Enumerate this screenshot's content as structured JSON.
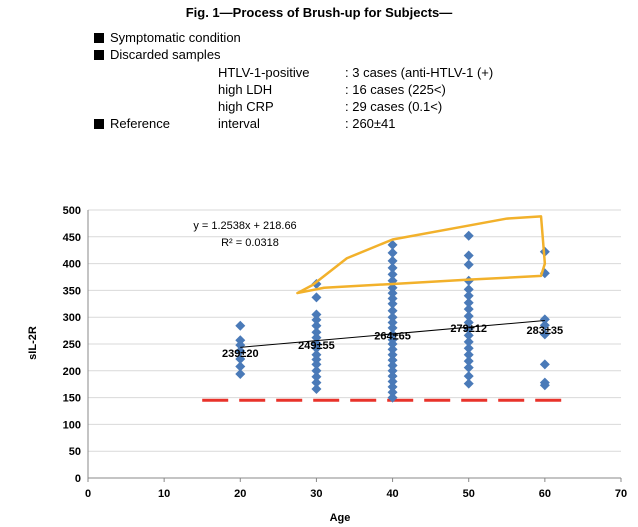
{
  "header": {
    "title": "Fig. 1—Process of Brush-up for Subjects—",
    "bullets": [
      "Symptomatic condition",
      "Discarded samples",
      "Reference"
    ],
    "reference_label": "interval",
    "reference_value": ": 260±41",
    "discarded": [
      {
        "name": "HTLV-1-positive",
        "value": ": 3 cases (anti-HTLV-1 (+)"
      },
      {
        "name": "high LDH",
        "value": ": 16 cases (225<)"
      },
      {
        "name": "high CRP",
        "value": ": 29 cases (0.1<)"
      }
    ]
  },
  "colors": {
    "points": "#4a7ab8",
    "trend": "#000000",
    "highlight": "#f2b12b",
    "threshold": "#e8322a"
  },
  "chart_data": {
    "type": "scatter",
    "xlabel": "Age",
    "ylabel": "sIL-2R",
    "xlim": [
      0,
      70
    ],
    "ylim": [
      0,
      500
    ],
    "xticks": [
      0,
      10,
      20,
      30,
      40,
      50,
      60,
      70
    ],
    "yticks": [
      0,
      50,
      100,
      150,
      200,
      250,
      300,
      350,
      400,
      450,
      500
    ],
    "grid": "horizontal",
    "trendline": {
      "slope": 1.2538,
      "intercept": 218.66,
      "x_range": [
        20,
        60
      ],
      "equation": "y = 1.2538x + 218.66",
      "r2": "R² = 0.0318"
    },
    "threshold_line": {
      "y": 145,
      "x_range": [
        15,
        63
      ]
    },
    "highlight_polygon": [
      [
        27.5,
        345
      ],
      [
        31,
        355
      ],
      [
        40,
        362
      ],
      [
        50,
        370
      ],
      [
        59.5,
        377
      ],
      [
        60,
        400
      ],
      [
        59.5,
        488
      ],
      [
        55,
        484
      ],
      [
        50,
        471
      ],
      [
        40,
        445
      ],
      [
        34,
        410
      ],
      [
        29.5,
        360
      ]
    ],
    "group_labels": [
      {
        "x": 20,
        "y": 233,
        "text": "239±20"
      },
      {
        "x": 30,
        "y": 248,
        "text": "249±55"
      },
      {
        "x": 40,
        "y": 266,
        "text": "264±65"
      },
      {
        "x": 50,
        "y": 280,
        "text": "279±12"
      },
      {
        "x": 60,
        "y": 276,
        "text": "283±35"
      }
    ],
    "points": [
      {
        "x": 20,
        "y": 284
      },
      {
        "x": 20,
        "y": 257
      },
      {
        "x": 20,
        "y": 248
      },
      {
        "x": 20,
        "y": 237
      },
      {
        "x": 20,
        "y": 222
      },
      {
        "x": 20,
        "y": 208
      },
      {
        "x": 20,
        "y": 194
      },
      {
        "x": 30,
        "y": 362
      },
      {
        "x": 30,
        "y": 337
      },
      {
        "x": 30,
        "y": 305
      },
      {
        "x": 30,
        "y": 295
      },
      {
        "x": 30,
        "y": 284
      },
      {
        "x": 30,
        "y": 272
      },
      {
        "x": 30,
        "y": 262
      },
      {
        "x": 30,
        "y": 251
      },
      {
        "x": 30,
        "y": 242
      },
      {
        "x": 30,
        "y": 230
      },
      {
        "x": 30,
        "y": 221
      },
      {
        "x": 30,
        "y": 212
      },
      {
        "x": 30,
        "y": 200
      },
      {
        "x": 30,
        "y": 189
      },
      {
        "x": 30,
        "y": 178
      },
      {
        "x": 30,
        "y": 166
      },
      {
        "x": 40,
        "y": 435
      },
      {
        "x": 40,
        "y": 420
      },
      {
        "x": 40,
        "y": 405
      },
      {
        "x": 40,
        "y": 392
      },
      {
        "x": 40,
        "y": 380
      },
      {
        "x": 40,
        "y": 368
      },
      {
        "x": 40,
        "y": 355
      },
      {
        "x": 40,
        "y": 345
      },
      {
        "x": 40,
        "y": 335
      },
      {
        "x": 40,
        "y": 325
      },
      {
        "x": 40,
        "y": 312
      },
      {
        "x": 40,
        "y": 300
      },
      {
        "x": 40,
        "y": 290
      },
      {
        "x": 40,
        "y": 280
      },
      {
        "x": 40,
        "y": 268
      },
      {
        "x": 40,
        "y": 258
      },
      {
        "x": 40,
        "y": 250
      },
      {
        "x": 40,
        "y": 240
      },
      {
        "x": 40,
        "y": 230
      },
      {
        "x": 40,
        "y": 220
      },
      {
        "x": 40,
        "y": 210
      },
      {
        "x": 40,
        "y": 200
      },
      {
        "x": 40,
        "y": 190
      },
      {
        "x": 40,
        "y": 180
      },
      {
        "x": 40,
        "y": 170
      },
      {
        "x": 40,
        "y": 160
      },
      {
        "x": 40,
        "y": 150
      },
      {
        "x": 50,
        "y": 452
      },
      {
        "x": 50,
        "y": 415
      },
      {
        "x": 50,
        "y": 398
      },
      {
        "x": 50,
        "y": 368
      },
      {
        "x": 50,
        "y": 352
      },
      {
        "x": 50,
        "y": 340
      },
      {
        "x": 50,
        "y": 327
      },
      {
        "x": 50,
        "y": 315
      },
      {
        "x": 50,
        "y": 302
      },
      {
        "x": 50,
        "y": 290
      },
      {
        "x": 50,
        "y": 278
      },
      {
        "x": 50,
        "y": 266
      },
      {
        "x": 50,
        "y": 254
      },
      {
        "x": 50,
        "y": 242
      },
      {
        "x": 50,
        "y": 230
      },
      {
        "x": 50,
        "y": 218
      },
      {
        "x": 50,
        "y": 206
      },
      {
        "x": 50,
        "y": 190
      },
      {
        "x": 50,
        "y": 176
      },
      {
        "x": 60,
        "y": 422
      },
      {
        "x": 60,
        "y": 382
      },
      {
        "x": 60,
        "y": 296
      },
      {
        "x": 60,
        "y": 285
      },
      {
        "x": 60,
        "y": 268
      },
      {
        "x": 60,
        "y": 212
      },
      {
        "x": 60,
        "y": 178
      },
      {
        "x": 60,
        "y": 173
      }
    ]
  }
}
